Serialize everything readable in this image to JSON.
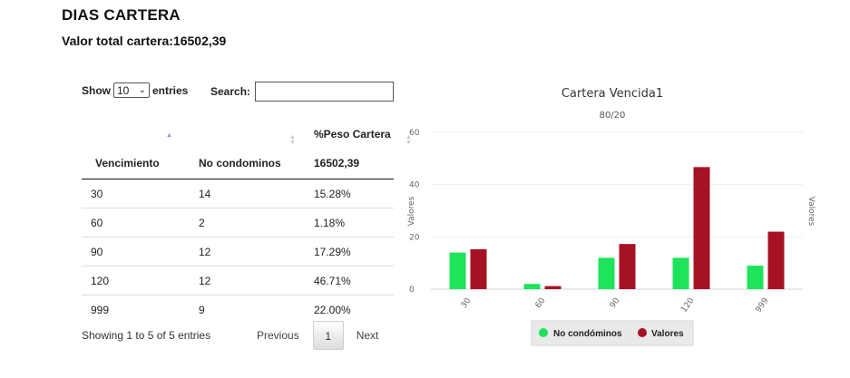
{
  "header": {
    "title": "DIAS CARTERA",
    "subtitle": "Valor total cartera:16502,39"
  },
  "table_controls": {
    "show_label": "Show",
    "entries_value": "10",
    "entries_label": "entries",
    "search_label": "Search:",
    "search_value": ""
  },
  "table": {
    "columns": {
      "vencimiento": "Vencimiento",
      "condominos": "No condominos",
      "peso_title": "%Peso Cartera",
      "peso_total": "16502,39"
    },
    "rows": [
      {
        "vencimiento": "30",
        "condominos": "14",
        "peso": "15.28%"
      },
      {
        "vencimiento": "60",
        "condominos": "2",
        "peso": "1.18%"
      },
      {
        "vencimiento": "90",
        "condominos": "12",
        "peso": "17.29%"
      },
      {
        "vencimiento": "120",
        "condominos": "12",
        "peso": "46.71%"
      },
      {
        "vencimiento": "999",
        "condominos": "9",
        "peso": "22.00%"
      }
    ],
    "info": "Showing 1 to 5 of 5 entries",
    "pagination": {
      "previous": "Previous",
      "current": "1",
      "next": "Next"
    }
  },
  "chart_data": {
    "type": "bar",
    "title": "Cartera Vencida1",
    "subtitle": "80/20",
    "categories": [
      "30",
      "60",
      "90",
      "120",
      "999"
    ],
    "series": [
      {
        "name": "No condóminos",
        "color": "#1ee35b",
        "values": [
          14,
          2,
          12,
          12,
          9
        ]
      },
      {
        "name": "Valores",
        "color": "#a51125",
        "values": [
          15.28,
          1.18,
          17.29,
          46.71,
          22.0
        ]
      }
    ],
    "ylabel": "Valores",
    "y2label": "Valores",
    "ylim": [
      0,
      60
    ],
    "yticks": [
      "0",
      "20",
      "40",
      "60"
    ],
    "grid": true,
    "legend": "bottom"
  }
}
